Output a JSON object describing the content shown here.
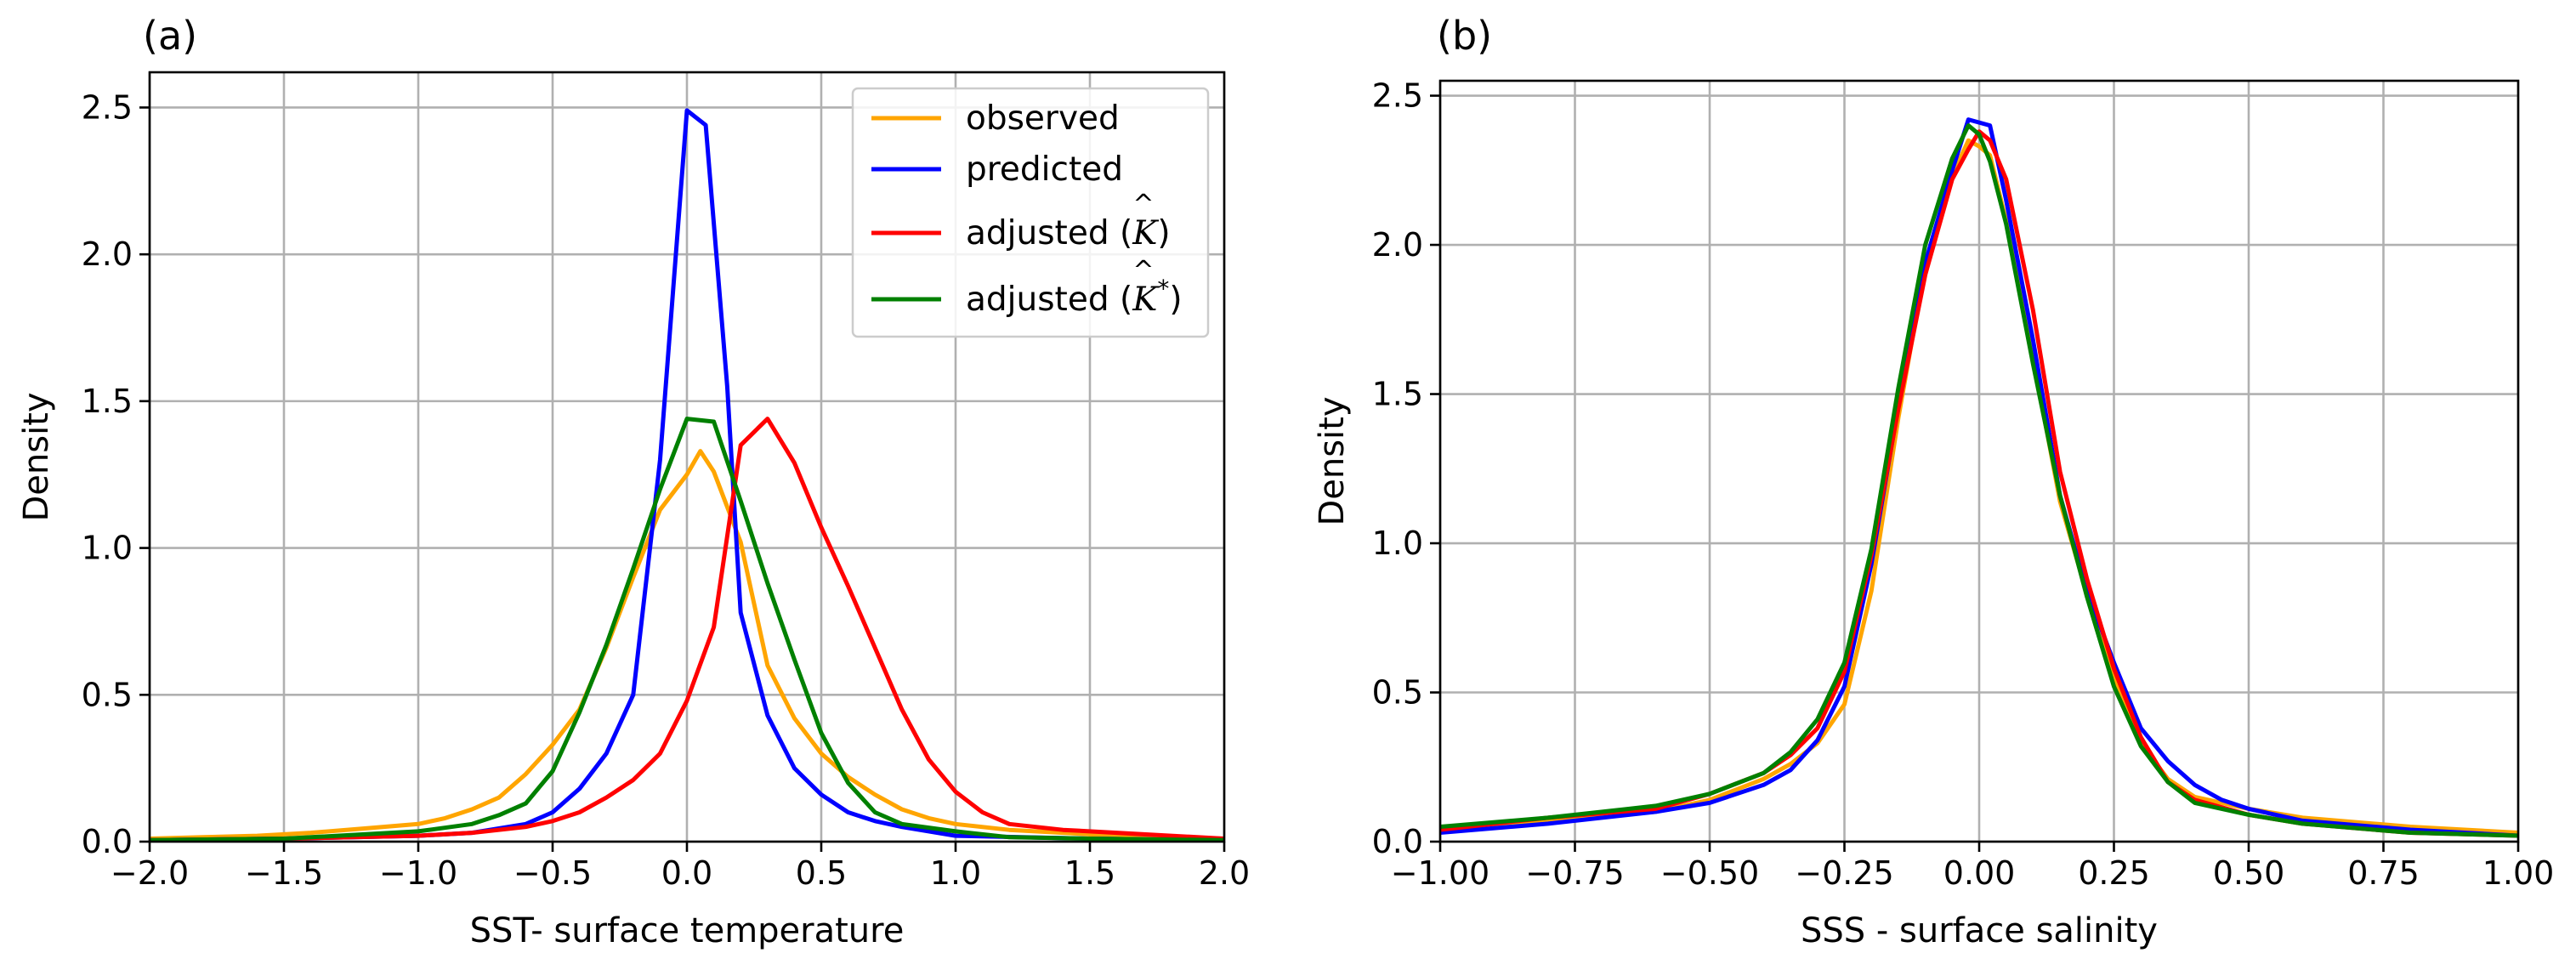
{
  "figure": {
    "panels": [
      "(a)",
      "(b)"
    ]
  },
  "chart_data": [
    {
      "type": "line",
      "panel_label": "(a)",
      "xlabel": "SST- surface temperature",
      "ylabel": "Density",
      "xlim": [
        -2.0,
        2.0
      ],
      "ylim": [
        0,
        2.62
      ],
      "xticks": [
        -2.0,
        -1.5,
        -1.0,
        -0.5,
        0.0,
        0.5,
        1.0,
        1.5,
        2.0
      ],
      "xtick_labels": [
        "−2.0",
        "−1.5",
        "−1.0",
        "−0.5",
        "0.0",
        "0.5",
        "1.0",
        "1.5",
        "2.0"
      ],
      "yticks": [
        0.0,
        0.5,
        1.0,
        1.5,
        2.0,
        2.5
      ],
      "ytick_labels": [
        "0.0",
        "0.5",
        "1.0",
        "1.5",
        "2.0",
        "2.5"
      ],
      "grid": true,
      "legend": {
        "position": "top-right",
        "entries": [
          {
            "label": "observed",
            "color": "#FFA500"
          },
          {
            "label": "predicted",
            "color": "#0000FF"
          },
          {
            "label": "adjusted (K̂)",
            "base": "adjusted (",
            "sym": "K",
            "sup": "",
            "tail": ")",
            "color": "#FF0000"
          },
          {
            "label": "adjusted (K̂*)",
            "base": "adjusted (",
            "sym": "K",
            "sup": "*",
            "tail": ")",
            "color": "#008000"
          }
        ]
      },
      "series": [
        {
          "name": "observed",
          "color": "#FFA500",
          "x": [
            -2.0,
            -1.8,
            -1.6,
            -1.4,
            -1.2,
            -1.0,
            -0.9,
            -0.8,
            -0.7,
            -0.6,
            -0.5,
            -0.4,
            -0.3,
            -0.2,
            -0.1,
            0.0,
            0.05,
            0.1,
            0.2,
            0.3,
            0.4,
            0.5,
            0.6,
            0.7,
            0.8,
            0.9,
            1.0,
            1.2,
            1.4,
            1.6,
            1.8,
            2.0
          ],
          "y": [
            0.01,
            0.015,
            0.02,
            0.03,
            0.045,
            0.06,
            0.08,
            0.11,
            0.15,
            0.23,
            0.33,
            0.45,
            0.66,
            0.9,
            1.13,
            1.25,
            1.33,
            1.26,
            1.02,
            0.6,
            0.42,
            0.3,
            0.22,
            0.16,
            0.11,
            0.08,
            0.06,
            0.04,
            0.03,
            0.02,
            0.015,
            0.01
          ]
        },
        {
          "name": "predicted",
          "color": "#0000FF",
          "x": [
            -2.0,
            -1.5,
            -1.0,
            -0.8,
            -0.6,
            -0.5,
            -0.4,
            -0.3,
            -0.2,
            -0.1,
            0.0,
            0.07,
            0.15,
            0.2,
            0.3,
            0.4,
            0.5,
            0.6,
            0.7,
            0.8,
            1.0,
            1.5,
            2.0
          ],
          "y": [
            0.005,
            0.01,
            0.02,
            0.03,
            0.06,
            0.1,
            0.18,
            0.3,
            0.5,
            1.3,
            2.49,
            2.44,
            1.55,
            0.78,
            0.43,
            0.25,
            0.16,
            0.1,
            0.07,
            0.05,
            0.02,
            0.01,
            0.005
          ]
        },
        {
          "name": "adjusted (K̂)",
          "color": "#FF0000",
          "x": [
            -2.0,
            -1.5,
            -1.0,
            -0.8,
            -0.6,
            -0.5,
            -0.4,
            -0.3,
            -0.2,
            -0.1,
            0.0,
            0.1,
            0.2,
            0.3,
            0.4,
            0.5,
            0.6,
            0.7,
            0.8,
            0.9,
            1.0,
            1.1,
            1.2,
            1.4,
            1.6,
            2.0
          ],
          "y": [
            0.005,
            0.01,
            0.02,
            0.03,
            0.05,
            0.07,
            0.1,
            0.15,
            0.21,
            0.3,
            0.48,
            0.73,
            1.35,
            1.44,
            1.29,
            1.07,
            0.87,
            0.66,
            0.45,
            0.28,
            0.17,
            0.1,
            0.06,
            0.04,
            0.03,
            0.01
          ]
        },
        {
          "name": "adjusted (K̂*)",
          "color": "#008000",
          "x": [
            -2.0,
            -1.5,
            -1.0,
            -0.8,
            -0.7,
            -0.6,
            -0.5,
            -0.4,
            -0.3,
            -0.2,
            -0.1,
            0.0,
            0.1,
            0.2,
            0.3,
            0.4,
            0.5,
            0.6,
            0.7,
            0.8,
            1.0,
            1.2,
            1.5,
            2.0
          ],
          "y": [
            0.005,
            0.01,
            0.035,
            0.06,
            0.09,
            0.13,
            0.24,
            0.44,
            0.67,
            0.93,
            1.2,
            1.44,
            1.43,
            1.16,
            0.88,
            0.62,
            0.37,
            0.2,
            0.1,
            0.06,
            0.035,
            0.015,
            0.01,
            0.005
          ]
        }
      ]
    },
    {
      "type": "line",
      "panel_label": "(b)",
      "xlabel": "SSS - surface salinity",
      "ylabel": "Density",
      "xlim": [
        -1.0,
        1.0
      ],
      "ylim": [
        0,
        2.55
      ],
      "xticks": [
        -1.0,
        -0.75,
        -0.5,
        -0.25,
        0.0,
        0.25,
        0.5,
        0.75,
        1.0
      ],
      "xtick_labels": [
        "−1.00",
        "−0.75",
        "−0.50",
        "−0.25",
        "0.00",
        "0.25",
        "0.50",
        "0.75",
        "1.00"
      ],
      "yticks": [
        0.0,
        0.5,
        1.0,
        1.5,
        2.0,
        2.5
      ],
      "ytick_labels": [
        "0.0",
        "0.5",
        "1.0",
        "1.5",
        "2.0",
        "2.5"
      ],
      "grid": true,
      "series": [
        {
          "name": "observed",
          "color": "#FFA500",
          "x": [
            -1.0,
            -0.8,
            -0.6,
            -0.5,
            -0.4,
            -0.35,
            -0.3,
            -0.25,
            -0.2,
            -0.15,
            -0.1,
            -0.05,
            -0.02,
            0.0,
            0.02,
            0.05,
            0.1,
            0.15,
            0.2,
            0.25,
            0.3,
            0.35,
            0.4,
            0.5,
            0.6,
            0.8,
            1.0
          ],
          "y": [
            0.04,
            0.07,
            0.1,
            0.14,
            0.21,
            0.26,
            0.33,
            0.46,
            0.84,
            1.42,
            1.93,
            2.23,
            2.35,
            2.33,
            2.3,
            2.08,
            1.62,
            1.14,
            0.83,
            0.55,
            0.33,
            0.21,
            0.15,
            0.11,
            0.08,
            0.05,
            0.03
          ]
        },
        {
          "name": "predicted",
          "color": "#0000FF",
          "x": [
            -1.0,
            -0.8,
            -0.6,
            -0.5,
            -0.4,
            -0.35,
            -0.3,
            -0.25,
            -0.2,
            -0.15,
            -0.1,
            -0.05,
            -0.02,
            0.02,
            0.05,
            0.1,
            0.15,
            0.2,
            0.25,
            0.3,
            0.35,
            0.4,
            0.45,
            0.5,
            0.6,
            0.8,
            1.0
          ],
          "y": [
            0.03,
            0.06,
            0.1,
            0.13,
            0.19,
            0.24,
            0.34,
            0.52,
            0.93,
            1.46,
            1.94,
            2.25,
            2.42,
            2.4,
            2.15,
            1.68,
            1.16,
            0.84,
            0.6,
            0.38,
            0.27,
            0.19,
            0.14,
            0.11,
            0.07,
            0.04,
            0.02
          ]
        },
        {
          "name": "adjusted (K̂)",
          "color": "#FF0000",
          "x": [
            -1.0,
            -0.8,
            -0.6,
            -0.5,
            -0.4,
            -0.35,
            -0.3,
            -0.25,
            -0.2,
            -0.15,
            -0.1,
            -0.05,
            -0.02,
            0.0,
            0.02,
            0.05,
            0.1,
            0.15,
            0.2,
            0.25,
            0.3,
            0.35,
            0.4,
            0.5,
            0.6,
            0.8,
            1.0
          ],
          "y": [
            0.04,
            0.08,
            0.11,
            0.16,
            0.23,
            0.29,
            0.38,
            0.57,
            0.96,
            1.45,
            1.9,
            2.22,
            2.32,
            2.38,
            2.35,
            2.22,
            1.78,
            1.24,
            0.88,
            0.58,
            0.35,
            0.2,
            0.14,
            0.09,
            0.06,
            0.03,
            0.02
          ]
        },
        {
          "name": "adjusted (K̂*)",
          "color": "#008000",
          "x": [
            -1.0,
            -0.8,
            -0.6,
            -0.5,
            -0.4,
            -0.35,
            -0.3,
            -0.25,
            -0.2,
            -0.15,
            -0.1,
            -0.05,
            -0.02,
            0.0,
            0.02,
            0.05,
            0.1,
            0.15,
            0.2,
            0.25,
            0.3,
            0.35,
            0.4,
            0.5,
            0.6,
            0.8,
            1.0
          ],
          "y": [
            0.05,
            0.08,
            0.12,
            0.16,
            0.23,
            0.3,
            0.41,
            0.6,
            0.98,
            1.52,
            2.0,
            2.29,
            2.4,
            2.37,
            2.28,
            2.07,
            1.6,
            1.16,
            0.82,
            0.52,
            0.32,
            0.2,
            0.13,
            0.09,
            0.06,
            0.03,
            0.02
          ]
        }
      ]
    }
  ]
}
